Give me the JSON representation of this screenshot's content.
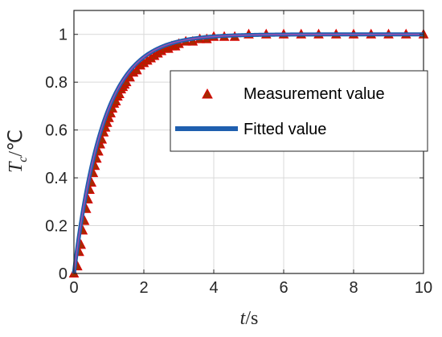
{
  "chart_data": {
    "type": "scatter",
    "xlabel": {
      "var": "t",
      "unit": "/s"
    },
    "ylabel": {
      "var": "T",
      "sub": "c",
      "unit": "/℃"
    },
    "xlim": [
      0,
      10
    ],
    "ylim": [
      0,
      1.1
    ],
    "xticks": [
      0,
      2,
      4,
      6,
      8,
      10
    ],
    "yticks": [
      0,
      0.2,
      0.4,
      0.6,
      0.8,
      1
    ],
    "xtick_labels": [
      "0",
      "2",
      "4",
      "6",
      "8",
      "10"
    ],
    "ytick_labels": [
      "0",
      "0.2",
      "0.4",
      "0.6",
      "0.8",
      "1"
    ],
    "grid": true,
    "legend_position": "center-right",
    "series": [
      {
        "name": "Measurement value",
        "kind": "scatter",
        "marker": "triangle",
        "color": "#8B2500",
        "points": [
          [
            0.0,
            0.0
          ],
          [
            0.1,
            0.03
          ],
          [
            0.15,
            0.09
          ],
          [
            0.2,
            0.12
          ],
          [
            0.25,
            0.18
          ],
          [
            0.3,
            0.22
          ],
          [
            0.35,
            0.27
          ],
          [
            0.4,
            0.31
          ],
          [
            0.45,
            0.35
          ],
          [
            0.5,
            0.38
          ],
          [
            0.55,
            0.42
          ],
          [
            0.6,
            0.45
          ],
          [
            0.65,
            0.48
          ],
          [
            0.7,
            0.51
          ],
          [
            0.75,
            0.54
          ],
          [
            0.8,
            0.56
          ],
          [
            0.85,
            0.59
          ],
          [
            0.9,
            0.61
          ],
          [
            0.95,
            0.63
          ],
          [
            1.0,
            0.65
          ],
          [
            1.05,
            0.67
          ],
          [
            1.1,
            0.69
          ],
          [
            1.15,
            0.71
          ],
          [
            1.2,
            0.72
          ],
          [
            1.25,
            0.74
          ],
          [
            1.3,
            0.75
          ],
          [
            1.35,
            0.77
          ],
          [
            1.4,
            0.78
          ],
          [
            1.45,
            0.79
          ],
          [
            1.5,
            0.8
          ],
          [
            1.6,
            0.82
          ],
          [
            1.7,
            0.84
          ],
          [
            1.8,
            0.85
          ],
          [
            1.9,
            0.87
          ],
          [
            2.0,
            0.88
          ],
          [
            2.1,
            0.89
          ],
          [
            2.2,
            0.9
          ],
          [
            2.3,
            0.91
          ],
          [
            2.4,
            0.92
          ],
          [
            2.5,
            0.93
          ],
          [
            2.6,
            0.94
          ],
          [
            2.7,
            0.94
          ],
          [
            2.8,
            0.95
          ],
          [
            2.9,
            0.95
          ],
          [
            3.0,
            0.96
          ],
          [
            3.2,
            0.97
          ],
          [
            3.4,
            0.97
          ],
          [
            3.6,
            0.98
          ],
          [
            3.8,
            0.98
          ],
          [
            4.0,
            0.99
          ],
          [
            4.3,
            0.99
          ],
          [
            4.6,
            0.99
          ],
          [
            5.0,
            1.0
          ],
          [
            5.5,
            1.0
          ],
          [
            6.0,
            1.0
          ],
          [
            6.5,
            1.0
          ],
          [
            7.0,
            1.0
          ],
          [
            7.5,
            1.0
          ],
          [
            8.0,
            1.0
          ],
          [
            8.5,
            1.0
          ],
          [
            9.0,
            1.0
          ],
          [
            9.5,
            1.0
          ],
          [
            10.0,
            1.0
          ]
        ]
      },
      {
        "name": "Fitted value",
        "kind": "line",
        "model": {
          "form": "1 - exp(-x/tau)",
          "tau": 0.85
        },
        "color": "#1F5FAF"
      }
    ]
  },
  "legend": {
    "measurement_label": "Measurement value",
    "fitted_label": "Fitted value"
  },
  "colors": {
    "measurement_marker": "#A52A00",
    "measurement_edge": "#DD0000",
    "fitted_line": "#1F5FAF",
    "fitted_highlight": "#9B4FB0",
    "grid": "#D9D9D9",
    "axes": "#262626"
  }
}
